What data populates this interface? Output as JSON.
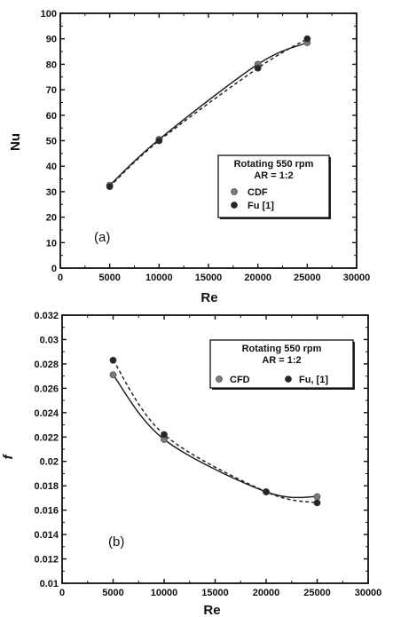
{
  "chart_data": [
    {
      "type": "line",
      "panel_label": "(a)",
      "xlabel": "Re",
      "ylabel": "Nu",
      "xlim": [
        0,
        30000
      ],
      "ylim": [
        0,
        100
      ],
      "x_ticks": [
        0,
        5000,
        10000,
        15000,
        20000,
        25000,
        30000
      ],
      "y_ticks": [
        0,
        10,
        20,
        30,
        40,
        50,
        60,
        70,
        80,
        90,
        100
      ],
      "legend": {
        "title_lines": [
          "Rotating 550 rpm",
          "AR = 1:2"
        ],
        "placement": "lower-right",
        "layout": "vertical"
      },
      "series": [
        {
          "name": "CDF",
          "marker_color": "#7a7a7a",
          "line": "solid",
          "x": [
            5000,
            10000,
            20000,
            25000
          ],
          "y": [
            32.5,
            50.5,
            80,
            88.5
          ]
        },
        {
          "name": "Fu [1]",
          "marker_color": "#262626",
          "line": "dashed",
          "x": [
            5000,
            10000,
            20000,
            25000
          ],
          "y": [
            32,
            50,
            78.5,
            90
          ]
        }
      ]
    },
    {
      "type": "line",
      "panel_label": "(b)",
      "xlabel": "Re",
      "ylabel": "f",
      "xlim": [
        0,
        30000
      ],
      "ylim": [
        0.01,
        0.032
      ],
      "x_ticks": [
        0,
        5000,
        10000,
        15000,
        20000,
        25000,
        30000
      ],
      "y_ticks": [
        0.01,
        0.012,
        0.014,
        0.016,
        0.018,
        0.02,
        0.022,
        0.024,
        0.026,
        0.028,
        0.03,
        0.032
      ],
      "legend": {
        "title_lines": [
          "Rotating 550 rpm",
          "AR = 1:2"
        ],
        "placement": "top-right",
        "layout": "horizontal"
      },
      "series": [
        {
          "name": "CFD",
          "marker_color": "#7a7a7a",
          "line": "solid",
          "x": [
            5000,
            10000,
            20000,
            25000
          ],
          "y": [
            0.0271,
            0.0218,
            0.0175,
            0.0171
          ]
        },
        {
          "name": "Fu, [1]",
          "marker_color": "#262626",
          "line": "dashed",
          "x": [
            5000,
            10000,
            20000,
            25000
          ],
          "y": [
            0.0283,
            0.0222,
            0.0175,
            0.0166
          ]
        }
      ]
    }
  ]
}
